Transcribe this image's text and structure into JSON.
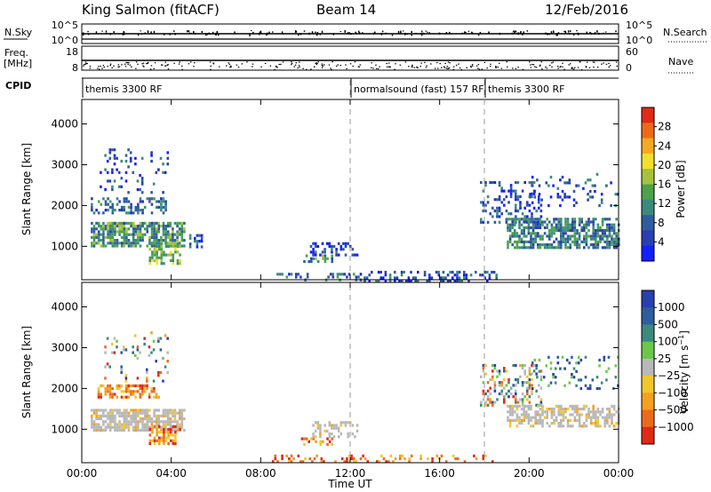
{
  "header": {
    "station": "King Salmon (fitACF)",
    "beam": "Beam 14",
    "date": "12/Feb/2016"
  },
  "strips": {
    "nsky": {
      "label": "N.Sky",
      "right_label": "N.Search",
      "ticks_left": [
        "10^5",
        "10^0"
      ],
      "ticks_right": [
        "10^5",
        "10^0"
      ]
    },
    "freq": {
      "label_line1": "Freq.",
      "label_line2": "[MHz]",
      "ticks_left": [
        "18",
        "8"
      ],
      "ticks_right": [
        "60",
        "0"
      ],
      "right_label": "Nave"
    },
    "cpid": {
      "label": "CPID",
      "segments": [
        {
          "label": "themis 3300 RF",
          "start_hour": 0,
          "end_hour": 12
        },
        {
          "label": "normalsound (fast) 157 RF",
          "start_hour": 12,
          "end_hour": 18
        },
        {
          "label": "themis 3300 RF",
          "start_hour": 18,
          "end_hour": 24
        }
      ]
    }
  },
  "time_axis": {
    "label": "Time UT",
    "range_hours": [
      0,
      24
    ],
    "tick_hours": [
      0,
      4,
      8,
      12,
      16,
      20,
      24
    ],
    "tick_labels": [
      "00:00",
      "04:00",
      "08:00",
      "12:00",
      "16:00",
      "20:00",
      "00:00"
    ],
    "dashed_markers_hours": [
      12,
      18
    ]
  },
  "chart_data": [
    {
      "type": "heatmap",
      "name": "power",
      "ylabel": "Slant Range [km]",
      "ylim": [
        180,
        4600
      ],
      "yticks": [
        1000,
        2000,
        3000,
        4000
      ],
      "xlim_hours": [
        0,
        24
      ],
      "colorbar": {
        "label": "Power [dB]",
        "range": [
          0,
          32
        ],
        "ticks": [
          4,
          8,
          12,
          16,
          20,
          24,
          28
        ],
        "tick_labels": [
          "4",
          "8",
          "12",
          "16",
          "20",
          "24",
          "28"
        ],
        "colors": [
          "#1420ff",
          "#2a3fb0",
          "#2e5e9e",
          "#3b8a7d",
          "#4da24a",
          "#a6c23a",
          "#f2e02c",
          "#f5a821",
          "#ee6a1b",
          "#e02a16"
        ]
      },
      "regions": [
        {
          "t": [
            0.4,
            4.6
          ],
          "range": [
            1000,
            1600
          ],
          "value": 12,
          "density": 0.75
        },
        {
          "t": [
            0.4,
            3.8
          ],
          "range": [
            1800,
            2200
          ],
          "value": 8,
          "density": 0.45
        },
        {
          "t": [
            0.8,
            3.8
          ],
          "range": [
            2300,
            3400
          ],
          "value": 6,
          "density": 0.15
        },
        {
          "t": [
            3.0,
            4.4
          ],
          "range": [
            600,
            1100
          ],
          "value": 16,
          "density": 0.55
        },
        {
          "t": [
            4.8,
            5.4
          ],
          "range": [
            1000,
            1300
          ],
          "value": 6,
          "density": 0.5
        },
        {
          "t": [
            8.5,
            12.5
          ],
          "range": [
            180,
            350
          ],
          "value": 8,
          "density": 0.25
        },
        {
          "t": [
            12.5,
            18.5
          ],
          "range": [
            180,
            400
          ],
          "value": 6,
          "density": 0.35
        },
        {
          "t": [
            9.8,
            11.2
          ],
          "range": [
            600,
            800
          ],
          "value": 12,
          "density": 0.4
        },
        {
          "t": [
            10.2,
            12.3
          ],
          "range": [
            800,
            1100
          ],
          "value": 4,
          "density": 0.4
        },
        {
          "t": [
            17.8,
            20.5
          ],
          "range": [
            1600,
            2600
          ],
          "value": 6,
          "density": 0.3
        },
        {
          "t": [
            19.0,
            24.0
          ],
          "range": [
            1000,
            1700
          ],
          "value": 10,
          "density": 0.65
        },
        {
          "t": [
            20.0,
            24.0
          ],
          "range": [
            2000,
            2800
          ],
          "value": 6,
          "density": 0.15
        }
      ]
    },
    {
      "type": "heatmap",
      "name": "velocity",
      "ylabel": "Slant Range [km]",
      "ylim": [
        180,
        4600
      ],
      "yticks": [
        1000,
        2000,
        3000,
        4000
      ],
      "xlim_hours": [
        0,
        24
      ],
      "colorbar": {
        "label": "Velocity [m s^-1]",
        "ticks": [
          1000,
          500,
          100,
          25,
          -25,
          -100,
          -500,
          -1000
        ],
        "tick_labels": [
          "1000",
          "500",
          "100",
          "25",
          "−25",
          "−100",
          "−500",
          "−1000"
        ],
        "colors": [
          "#2a3fb0",
          "#2e5e9e",
          "#3b8a7d",
          "#6ac94a",
          "#b8b8b8",
          "#f2c72c",
          "#f5a021",
          "#ee6a1b",
          "#e02a16"
        ]
      },
      "ground_scatter_color": "#b8b8b8",
      "regions": [
        {
          "t": [
            0.4,
            4.6
          ],
          "range": [
            1000,
            1500
          ],
          "value": "ground",
          "density": 0.75
        },
        {
          "t": [
            0.6,
            3.4
          ],
          "range": [
            1800,
            2100
          ],
          "value": "negative",
          "density": 0.5
        },
        {
          "t": [
            1.0,
            3.8
          ],
          "range": [
            2200,
            3400
          ],
          "value": "mixed",
          "density": 0.12
        },
        {
          "t": [
            3.0,
            4.4
          ],
          "range": [
            650,
            1100
          ],
          "value": "negative",
          "density": 0.55
        },
        {
          "t": [
            9.8,
            11.2
          ],
          "range": [
            600,
            800
          ],
          "value": "negative",
          "density": 0.4
        },
        {
          "t": [
            10.2,
            12.3
          ],
          "range": [
            800,
            1200
          ],
          "value": "ground",
          "density": 0.4
        },
        {
          "t": [
            8.5,
            18.5
          ],
          "range": [
            180,
            380
          ],
          "value": "negative",
          "density": 0.25
        },
        {
          "t": [
            17.8,
            20.5
          ],
          "range": [
            1600,
            2600
          ],
          "value": "mixed",
          "density": 0.3
        },
        {
          "t": [
            19.0,
            24.0
          ],
          "range": [
            1100,
            1600
          ],
          "value": "ground",
          "density": 0.6
        },
        {
          "t": [
            20.0,
            24.0
          ],
          "range": [
            2000,
            2800
          ],
          "value": "positive",
          "density": 0.15
        }
      ]
    }
  ]
}
